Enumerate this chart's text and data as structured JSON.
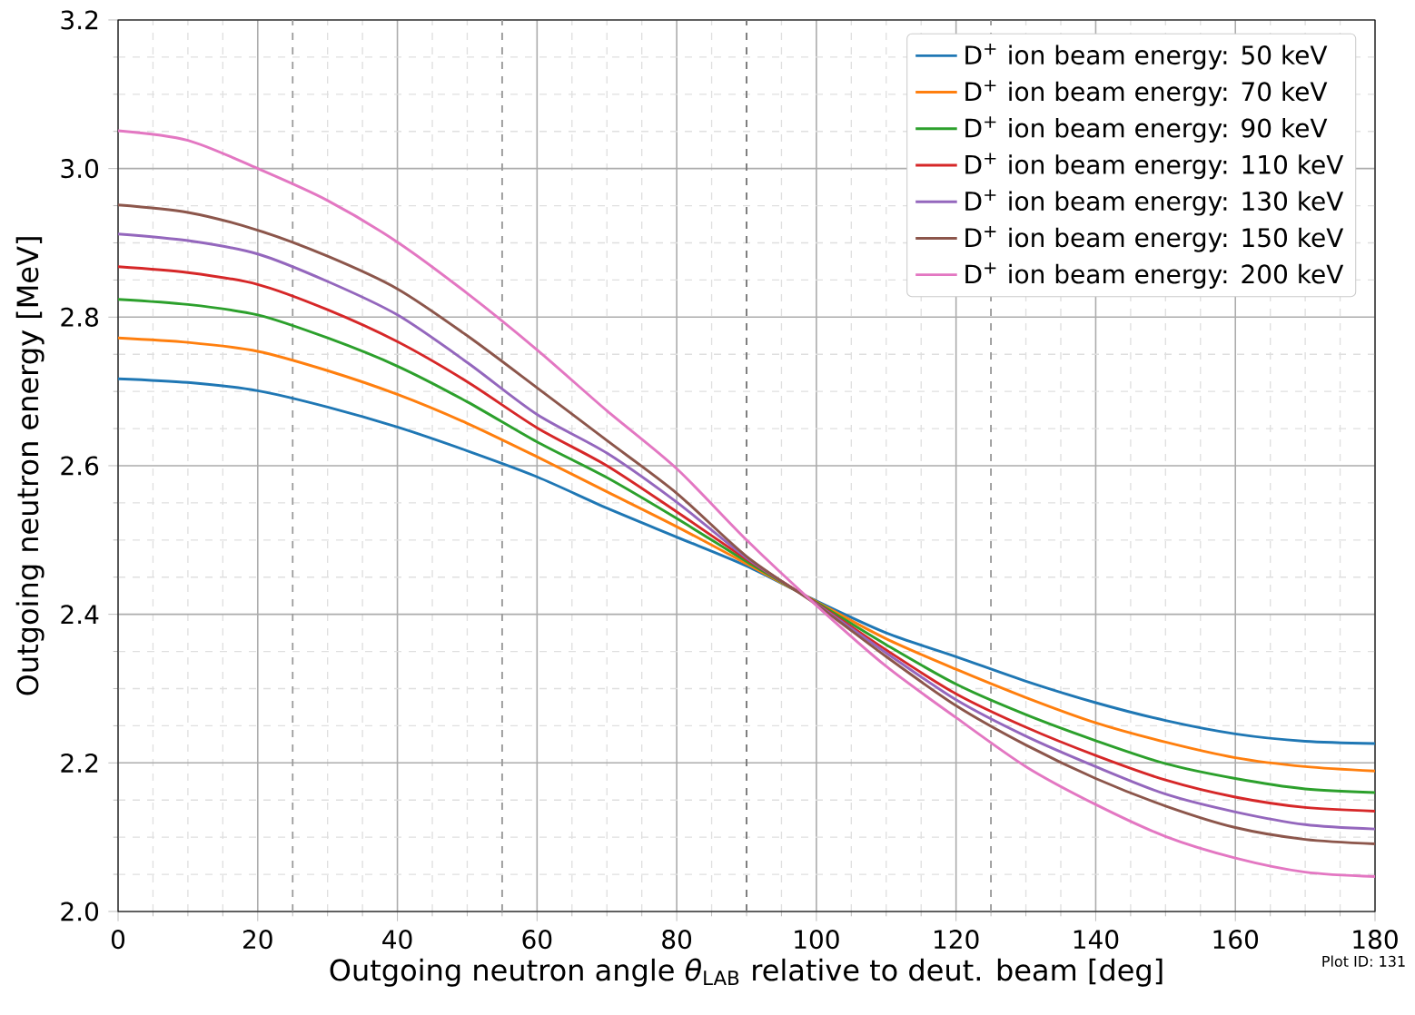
{
  "chart_data": {
    "type": "line",
    "xlabel": "Outgoing neutron angle *θ*$_{LAB}$ relative to deut. beam [deg]",
    "ylabel": "Outgoing neutron energy [MeV]",
    "x": [
      0,
      10,
      20,
      30,
      40,
      50,
      60,
      70,
      80,
      90,
      100,
      110,
      120,
      130,
      140,
      150,
      160,
      170,
      180
    ],
    "series": [
      {
        "name": "D$^{+}$ ion beam energy: 50 keV",
        "color": "#1f77b4",
        "values": [
          2.717,
          2.712,
          2.701,
          2.679,
          2.652,
          2.62,
          2.585,
          2.543,
          2.504,
          2.465,
          2.418,
          2.375,
          2.343,
          2.31,
          2.281,
          2.257,
          2.239,
          2.229,
          2.226
        ]
      },
      {
        "name": "D$^{+}$ ion beam energy: 70 keV",
        "color": "#ff7f0e",
        "values": [
          2.772,
          2.766,
          2.754,
          2.728,
          2.696,
          2.657,
          2.612,
          2.565,
          2.518,
          2.468,
          2.417,
          2.367,
          2.326,
          2.288,
          2.254,
          2.228,
          2.207,
          2.195,
          2.189
        ]
      },
      {
        "name": "D$^{+}$ ion beam energy: 90 keV",
        "color": "#2ca02c",
        "values": [
          2.824,
          2.817,
          2.803,
          2.772,
          2.734,
          2.686,
          2.632,
          2.584,
          2.529,
          2.471,
          2.416,
          2.359,
          2.306,
          2.265,
          2.23,
          2.199,
          2.179,
          2.165,
          2.16
        ]
      },
      {
        "name": "D$^{+}$ ion beam energy: 110 keV",
        "color": "#d62728",
        "values": [
          2.868,
          2.86,
          2.844,
          2.81,
          2.767,
          2.713,
          2.651,
          2.6,
          2.538,
          2.474,
          2.415,
          2.352,
          2.293,
          2.248,
          2.21,
          2.177,
          2.154,
          2.14,
          2.135
        ]
      },
      {
        "name": "D$^{+}$ ion beam energy: 130 keV",
        "color": "#9467bd",
        "values": [
          2.912,
          2.903,
          2.885,
          2.848,
          2.803,
          2.739,
          2.669,
          2.617,
          2.551,
          2.476,
          2.414,
          2.348,
          2.285,
          2.236,
          2.195,
          2.158,
          2.134,
          2.117,
          2.111
        ]
      },
      {
        "name": "D$^{+}$ ion beam energy: 150 keV",
        "color": "#8c564b",
        "values": [
          2.951,
          2.941,
          2.917,
          2.882,
          2.838,
          2.775,
          2.705,
          2.634,
          2.563,
          2.478,
          2.413,
          2.343,
          2.277,
          2.224,
          2.179,
          2.142,
          2.113,
          2.097,
          2.091
        ]
      },
      {
        "name": "D$^{+}$ ion beam energy: 200 keV",
        "color": "#e377c2",
        "values": [
          3.051,
          3.038,
          3.0,
          2.957,
          2.901,
          2.832,
          2.756,
          2.674,
          2.596,
          2.5,
          2.412,
          2.33,
          2.261,
          2.195,
          2.144,
          2.101,
          2.072,
          2.053,
          2.047
        ]
      }
    ],
    "xlim": [
      0,
      180
    ],
    "xticks": [
      0,
      20,
      40,
      60,
      80,
      100,
      120,
      140,
      160,
      180
    ],
    "ylim": [
      2.0,
      3.2
    ],
    "yticks": [
      {
        "value": 2.0,
        "label": "2.0"
      },
      2.2,
      2.4,
      2.6,
      2.8,
      {
        "value": 3.0,
        "label": "3.0"
      },
      3.2
    ],
    "ref_lines": [
      {
        "axis": "x",
        "value": 25,
        "color": "#999999",
        "line_style": "dashed"
      },
      {
        "axis": "x",
        "value": 55,
        "color": "#999999",
        "line_style": "dashed"
      },
      {
        "axis": "x",
        "value": 90,
        "color": "#777777",
        "line_style": "dashed"
      },
      {
        "axis": "x",
        "value": 125,
        "color": "#999999",
        "line_style": "dashed"
      }
    ],
    "grid": true,
    "legend": "top right",
    "annotations": [
      "Plot ID: 131"
    ]
  }
}
